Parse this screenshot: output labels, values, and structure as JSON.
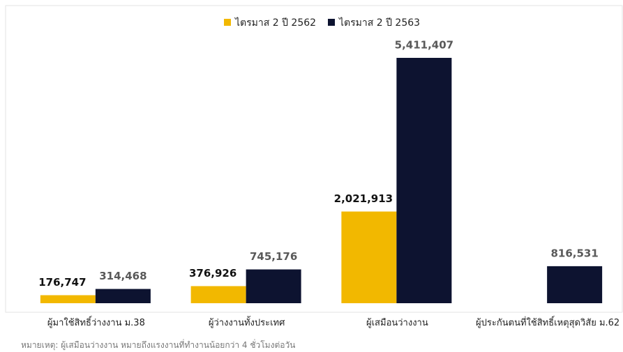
{
  "chart_data": {
    "type": "bar",
    "categories": [
      "ผู้มาใช้สิทธิ์ว่างงาน ม.38",
      "ผู้ว่างงานทั้งประเทศ",
      "ผู้เสมือนว่างงาน",
      "ผู้ประกันตนที่ใช้สิทธิ์เหตุสุดวิสัย ม.62"
    ],
    "series": [
      {
        "name": "ไตรมาส 2 ปี 2562",
        "color": "#f2b800",
        "values": [
          176747,
          376926,
          2021913,
          null
        ],
        "value_labels": [
          "176,747",
          "376,926",
          "2,021,913",
          null
        ]
      },
      {
        "name": "ไตรมาส 2 ปี 2563",
        "color": "#0d1330",
        "values": [
          314468,
          745176,
          5411407,
          816531
        ],
        "value_labels": [
          "314,468",
          "745,176",
          "5,411,407",
          "816,531"
        ]
      }
    ],
    "legend": "top",
    "note": "หมายเหตุ: ผู้เสมือนว่างงาน หมายถึงแรงงานที่ทำงานน้อยกว่า 4 ชั่วโมงต่อวัน"
  }
}
